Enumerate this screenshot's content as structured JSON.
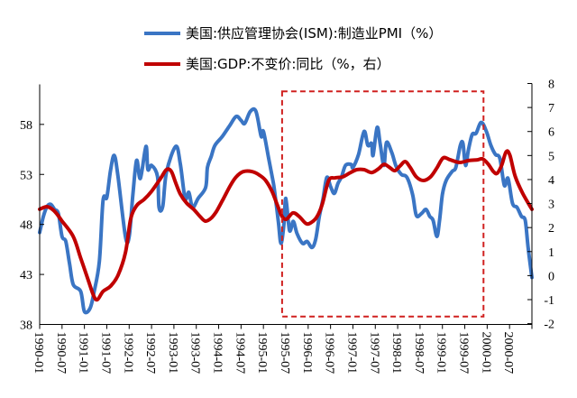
{
  "chart_data": {
    "type": "line",
    "title": "",
    "xlabel": "",
    "ylabel": "",
    "y2label": "",
    "x_start": "1990-01",
    "x_unit": "month",
    "xlim_months": [
      0,
      132
    ],
    "x_tick_labels": [
      "1990-01",
      "1990-07",
      "1991-01",
      "1991-07",
      "1992-01",
      "1992-07",
      "1993-01",
      "1993-07",
      "1994-01",
      "1994-07",
      "1995-01",
      "1995-07",
      "1996-01",
      "1996-07",
      "1997-01",
      "1997-07",
      "1998-01",
      "1998-07",
      "1999-01",
      "1999-07",
      "2000-01",
      "2000-07"
    ],
    "ylim_left": [
      38,
      62
    ],
    "y_left_ticks": [
      38,
      43,
      48,
      53,
      58
    ],
    "ylim_right": [
      -2,
      8
    ],
    "y_right_ticks": [
      -2,
      -1,
      0,
      1,
      2,
      3,
      4,
      5,
      6,
      7,
      8
    ],
    "legend_position": "top-center",
    "grid": false,
    "highlight_box": {
      "x_from_month": 65,
      "x_to_month": 119,
      "y_from": 38.8,
      "y_to": 61.3,
      "style": "dashed",
      "color": "#d0201f"
    },
    "series": [
      {
        "name": "美国:供应管理协会(ISM):制造业PMI（%）",
        "axis": "left",
        "color": "#3a75c4",
        "months": [
          0,
          1,
          2,
          3,
          4,
          5,
          6,
          7,
          8,
          9,
          11,
          12,
          13.5,
          14.5,
          16,
          17,
          18,
          19,
          20,
          21,
          23,
          24,
          25,
          26,
          27,
          28.5,
          29,
          30,
          31.6,
          32,
          33,
          34,
          36.5,
          37.7,
          39,
          40,
          41,
          42.5,
          44.5,
          45,
          46,
          47,
          49,
          51,
          52.7,
          54,
          55,
          56.5,
          58,
          59.4,
          60,
          61.4,
          62.6,
          63,
          64,
          64.7,
          65.5,
          66,
          67,
          68,
          69,
          70.5,
          71.7,
          73,
          74,
          75,
          76,
          77,
          78,
          79,
          80,
          81,
          82,
          83.5,
          84,
          85.5,
          87,
          88,
          89,
          89.4,
          90.5,
          91.3,
          92.3,
          93,
          94.4,
          95.6,
          97,
          98.5,
          100,
          101,
          102.4,
          103.6,
          104.6,
          105.5,
          106.5,
          107.2,
          108,
          109,
          110.6,
          111.6,
          112.8,
          113.5,
          114.2,
          115,
          116,
          117,
          118.4,
          119.8,
          121,
          122.2,
          123.4,
          124.6,
          125.6,
          126.8,
          128,
          129.2,
          130.2,
          131,
          132
        ],
        "values": [
          47.2,
          48.8,
          49.8,
          50.0,
          49.5,
          49.1,
          46.8,
          46.3,
          44.1,
          42.0,
          41.3,
          39.3,
          39.6,
          41.1,
          44.3,
          50.4,
          50.7,
          53.4,
          54.9,
          52.8,
          46.8,
          46.8,
          51.0,
          54.4,
          52.6,
          55.8,
          53.5,
          53.9,
          52.8,
          49.7,
          49.8,
          53.2,
          55.8,
          54.1,
          50.6,
          51.2,
          49.7,
          50.6,
          51.7,
          53.7,
          54.8,
          55.9,
          56.8,
          57.9,
          58.8,
          58.4,
          58.1,
          59.3,
          59.3,
          56.8,
          57.3,
          54.6,
          52.3,
          51.3,
          48.3,
          46.1,
          48.0,
          50.6,
          47.4,
          48.3,
          47.1,
          46.1,
          46.3,
          45.7,
          46.5,
          48.8,
          50.6,
          52.7,
          51.8,
          51.1,
          52.1,
          52.8,
          53.9,
          54.0,
          53.7,
          55.0,
          57.3,
          55.9,
          56.1,
          54.9,
          57.7,
          56.1,
          53.9,
          56.2,
          55.2,
          53.8,
          53.0,
          52.7,
          51.0,
          48.9,
          49.1,
          49.5,
          48.8,
          48.4,
          46.8,
          48.3,
          51.0,
          52.4,
          53.3,
          53.7,
          55.9,
          56.1,
          53.9,
          55.5,
          57.0,
          57.1,
          58.2,
          57.3,
          55.9,
          55.0,
          54.6,
          51.9,
          52.6,
          50.1,
          49.7,
          48.8,
          48.4,
          45.6,
          42.7
        ]
      },
      {
        "name": "美国:GDP:不变价:同比（%，右）",
        "axis": "right",
        "color": "#c00000",
        "months": [
          0,
          2,
          4,
          6,
          9,
          11,
          13,
          14.5,
          15.5,
          17,
          19,
          21,
          23,
          24.4,
          26,
          28,
          30,
          32.4,
          34,
          35.3,
          36.5,
          37.7,
          39.4,
          41.3,
          43,
          44.4,
          45.9,
          47.3,
          49.3,
          51.2,
          52.7,
          54.6,
          57,
          59,
          60.6,
          62.3,
          63.8,
          65,
          66.2,
          67.9,
          69.6,
          71.5,
          73,
          74.4,
          75.8,
          77.5,
          79.2,
          81.2,
          83,
          85,
          87,
          89,
          90.8,
          92.3,
          93.7,
          95.2,
          96.6,
          98,
          99.3,
          101,
          102.9,
          104.8,
          106.5,
          108.2,
          110.1,
          112.6,
          115,
          117.4,
          118.8,
          120.3,
          121.7,
          122.7,
          123.9,
          125.1,
          126.1,
          127.5,
          129.5,
          132
        ],
        "values": [
          2.76,
          2.87,
          2.68,
          2.27,
          1.63,
          0.73,
          -0.18,
          -0.85,
          -1.0,
          -0.66,
          -0.44,
          0.01,
          0.95,
          2.35,
          2.91,
          3.17,
          3.51,
          4.04,
          4.41,
          4.34,
          3.85,
          3.4,
          3.02,
          2.76,
          2.46,
          2.27,
          2.38,
          2.65,
          3.21,
          3.77,
          4.11,
          4.33,
          4.33,
          4.18,
          3.96,
          3.51,
          2.91,
          2.46,
          2.35,
          2.61,
          2.46,
          2.16,
          2.23,
          2.46,
          2.98,
          3.96,
          4.07,
          4.11,
          4.26,
          4.41,
          4.41,
          4.29,
          4.44,
          4.63,
          4.52,
          4.37,
          4.56,
          4.75,
          4.52,
          4.11,
          3.96,
          4.11,
          4.48,
          4.9,
          4.82,
          4.71,
          4.79,
          4.82,
          4.86,
          4.64,
          4.33,
          4.26,
          4.6,
          5.16,
          5.01,
          4.14,
          3.43,
          2.76
        ]
      }
    ]
  }
}
